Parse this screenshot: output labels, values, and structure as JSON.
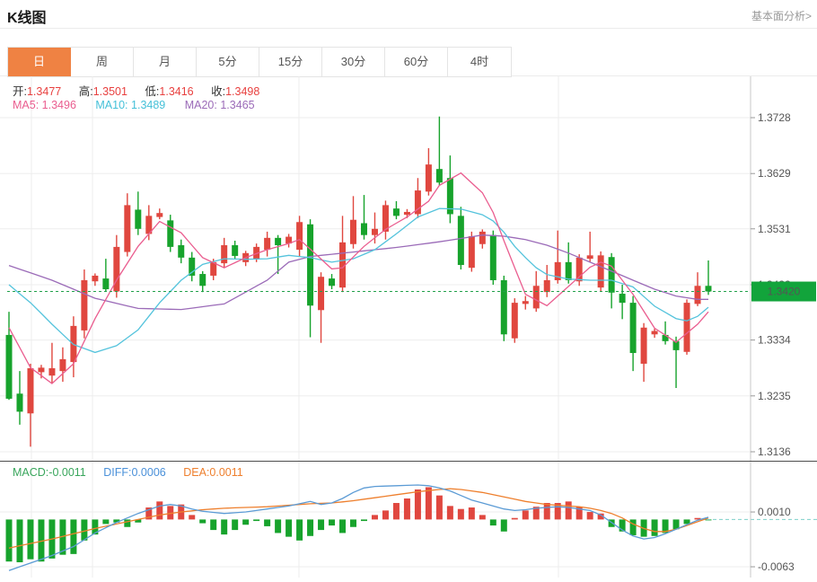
{
  "header": {
    "title": "K线图",
    "link": "基本面分析>"
  },
  "tabs": {
    "items": [
      "日",
      "周",
      "月",
      "5分",
      "15分",
      "30分",
      "60分",
      "4时"
    ],
    "selected": "日",
    "selected_index": 0
  },
  "overlay": {
    "ohlc": [
      {
        "label": "开:",
        "value": "1.3477"
      },
      {
        "label": "高:",
        "value": "1.3501"
      },
      {
        "label": "低:",
        "value": "1.3416"
      },
      {
        "label": "收:",
        "value": "1.3498"
      }
    ],
    "ma": [
      {
        "label": "MA5:",
        "value": "1.3496"
      },
      {
        "label": "MA10:",
        "value": "1.3489"
      },
      {
        "label": "MA20:",
        "value": "1.3465"
      }
    ],
    "macd": [
      {
        "label": "MACD:",
        "value": "-0.0011"
      },
      {
        "label": "DIFF:",
        "value": "0.0006"
      },
      {
        "label": "DEA:",
        "value": "0.0011"
      }
    ]
  },
  "colors": {
    "up": "#e0473f",
    "down": "#17a32c",
    "ma5": "#ea5d8f",
    "ma10": "#54c3dc",
    "ma20": "#9b6bb8",
    "diff": "#5b9bd5",
    "dea": "#ee7f2d",
    "badge": "#12a43b",
    "price_line": "#21a04a",
    "zero_dash": "#7fd0ca",
    "grid": "#ededed",
    "axis": "#c8c8c8",
    "tick": "#999999",
    "tick_text": "#555555",
    "accent_tab": "#ef8243"
  },
  "chart_data": {
    "type": "candlestick",
    "title": "K线图",
    "legend": [
      "MA5",
      "MA10",
      "MA20"
    ],
    "y_axis": {
      "max": 1.3728,
      "min": 1.3136,
      "tick_values": [
        1.3728,
        1.3629,
        1.3531,
        1.3432,
        1.3334,
        1.3235,
        1.3136
      ],
      "tick_labels": [
        "1.3728",
        "1.3629",
        "1.3531",
        "1.3432",
        "1.3334",
        "1.3235",
        "1.3136"
      ]
    },
    "current_price": 1.342,
    "current_price_label": "1.3420",
    "candles": [
      [
        1.3343,
        1.3384,
        1.3228,
        1.323
      ],
      [
        1.3239,
        1.3279,
        1.3184,
        1.3207
      ],
      [
        1.3204,
        1.3292,
        1.3145,
        1.3284
      ],
      [
        1.3277,
        1.329,
        1.3266,
        1.3285
      ],
      [
        1.3271,
        1.3329,
        1.3257,
        1.3284
      ],
      [
        1.3279,
        1.3321,
        1.326,
        1.33
      ],
      [
        1.3295,
        1.3376,
        1.3268,
        1.3359
      ],
      [
        1.3351,
        1.3459,
        1.3337,
        1.344
      ],
      [
        1.3438,
        1.3452,
        1.343,
        1.3448
      ],
      [
        1.3443,
        1.3478,
        1.342,
        1.3424
      ],
      [
        1.342,
        1.352,
        1.3409,
        1.3499
      ],
      [
        1.349,
        1.3594,
        1.3482,
        1.3573
      ],
      [
        1.3565,
        1.3597,
        1.352,
        1.3531
      ],
      [
        1.3522,
        1.3573,
        1.3511,
        1.3554
      ],
      [
        1.3552,
        1.3567,
        1.3548,
        1.3559
      ],
      [
        1.3546,
        1.3556,
        1.349,
        1.3499
      ],
      [
        1.3502,
        1.3512,
        1.347,
        1.348
      ],
      [
        1.348,
        1.349,
        1.3438,
        1.3448
      ],
      [
        1.3451,
        1.3456,
        1.3419,
        1.343
      ],
      [
        1.3448,
        1.3478,
        1.344,
        1.3472
      ],
      [
        1.347,
        1.3515,
        1.3462,
        1.3502
      ],
      [
        1.3502,
        1.351,
        1.3478,
        1.3483
      ],
      [
        1.3472,
        1.3492,
        1.3465,
        1.3488
      ],
      [
        1.3478,
        1.3505,
        1.3472,
        1.3499
      ],
      [
        1.3494,
        1.3526,
        1.3482,
        1.3515
      ],
      [
        1.3515,
        1.352,
        1.3451,
        1.3502
      ],
      [
        1.3505,
        1.3522,
        1.3498,
        1.3517
      ],
      [
        1.3494,
        1.3554,
        1.3482,
        1.3543
      ],
      [
        1.3539,
        1.3548,
        1.3339,
        1.3395
      ],
      [
        1.3387,
        1.3454,
        1.3329,
        1.3446
      ],
      [
        1.3443,
        1.3451,
        1.3424,
        1.343
      ],
      [
        1.3427,
        1.3554,
        1.3419,
        1.3507
      ],
      [
        1.3504,
        1.3589,
        1.3496,
        1.3547
      ],
      [
        1.3541,
        1.3591,
        1.3512,
        1.352
      ],
      [
        1.352,
        1.356,
        1.3505,
        1.3531
      ],
      [
        1.3526,
        1.3581,
        1.3512,
        1.3573
      ],
      [
        1.3567,
        1.358,
        1.3548,
        1.3554
      ],
      [
        1.3556,
        1.3566,
        1.355,
        1.3561
      ],
      [
        1.3557,
        1.3621,
        1.355,
        1.3599
      ],
      [
        1.3597,
        1.3674,
        1.359,
        1.3645
      ],
      [
        1.3637,
        1.373,
        1.3608,
        1.3613
      ],
      [
        1.3621,
        1.3661,
        1.3541,
        1.3557
      ],
      [
        1.3554,
        1.357,
        1.3459,
        1.3467
      ],
      [
        1.3462,
        1.3526,
        1.3455,
        1.3518
      ],
      [
        1.3504,
        1.353,
        1.3496,
        1.3526
      ],
      [
        1.352,
        1.3528,
        1.3432,
        1.344
      ],
      [
        1.344,
        1.3448,
        1.3332,
        1.3344
      ],
      [
        1.3337,
        1.3408,
        1.3329,
        1.34
      ],
      [
        1.3398,
        1.3412,
        1.3388,
        1.3403
      ],
      [
        1.339,
        1.3456,
        1.3384,
        1.343
      ],
      [
        1.3419,
        1.3467,
        1.341,
        1.344
      ],
      [
        1.344,
        1.3528,
        1.3434,
        1.3472
      ],
      [
        1.3472,
        1.3507,
        1.3434,
        1.344
      ],
      [
        1.3438,
        1.3486,
        1.343,
        1.348
      ],
      [
        1.3478,
        1.3526,
        1.3472,
        1.3484
      ],
      [
        1.3427,
        1.3491,
        1.342,
        1.3484
      ],
      [
        1.3481,
        1.3488,
        1.339,
        1.3418
      ],
      [
        1.3416,
        1.3432,
        1.3371,
        1.34
      ],
      [
        1.34,
        1.3412,
        1.3279,
        1.3311
      ],
      [
        1.3292,
        1.3364,
        1.326,
        1.3356
      ],
      [
        1.3344,
        1.3354,
        1.3338,
        1.335
      ],
      [
        1.3343,
        1.3367,
        1.3326,
        1.3332
      ],
      [
        1.3332,
        1.334,
        1.3249,
        1.3316
      ],
      [
        1.3313,
        1.3406,
        1.3308,
        1.34
      ],
      [
        1.3398,
        1.3454,
        1.3394,
        1.343
      ],
      [
        1.343,
        1.3475,
        1.3414,
        1.342
      ]
    ],
    "ma5_points": [
      [
        0,
        1.3356
      ],
      [
        2,
        1.3285
      ],
      [
        4,
        1.3257
      ],
      [
        6,
        1.3292
      ],
      [
        8,
        1.3372
      ],
      [
        10,
        1.344
      ],
      [
        12,
        1.35
      ],
      [
        14,
        1.3544
      ],
      [
        16,
        1.3524
      ],
      [
        18,
        1.348
      ],
      [
        20,
        1.3462
      ],
      [
        22,
        1.348
      ],
      [
        24,
        1.3494
      ],
      [
        26,
        1.3505
      ],
      [
        27,
        1.3512
      ],
      [
        28,
        1.3495
      ],
      [
        30,
        1.346
      ],
      [
        31,
        1.3462
      ],
      [
        33,
        1.35
      ],
      [
        35,
        1.353
      ],
      [
        37,
        1.3552
      ],
      [
        39,
        1.358
      ],
      [
        40,
        1.3608
      ],
      [
        42,
        1.363
      ],
      [
        44,
        1.3595
      ],
      [
        45,
        1.356
      ],
      [
        46,
        1.351
      ],
      [
        47,
        1.3462
      ],
      [
        48,
        1.3415
      ],
      [
        50,
        1.3395
      ],
      [
        52,
        1.3429
      ],
      [
        54,
        1.3463
      ],
      [
        55,
        1.3472
      ],
      [
        56,
        1.3465
      ],
      [
        58,
        1.3415
      ],
      [
        60,
        1.3355
      ],
      [
        62,
        1.333
      ],
      [
        64,
        1.3362
      ],
      [
        65,
        1.3384
      ]
    ],
    "ma10_points": [
      [
        0,
        1.3432
      ],
      [
        2,
        1.34
      ],
      [
        4,
        1.3362
      ],
      [
        6,
        1.3326
      ],
      [
        8,
        1.3312
      ],
      [
        10,
        1.3324
      ],
      [
        12,
        1.3352
      ],
      [
        14,
        1.34
      ],
      [
        16,
        1.344
      ],
      [
        18,
        1.3468
      ],
      [
        20,
        1.3478
      ],
      [
        22,
        1.3477
      ],
      [
        24,
        1.3478
      ],
      [
        26,
        1.3484
      ],
      [
        28,
        1.348
      ],
      [
        30,
        1.3472
      ],
      [
        32,
        1.3478
      ],
      [
        34,
        1.3494
      ],
      [
        36,
        1.3522
      ],
      [
        38,
        1.3552
      ],
      [
        40,
        1.3567
      ],
      [
        42,
        1.3566
      ],
      [
        44,
        1.3556
      ],
      [
        45,
        1.3545
      ],
      [
        46,
        1.3525
      ],
      [
        47,
        1.35
      ],
      [
        48,
        1.348
      ],
      [
        49,
        1.3462
      ],
      [
        50,
        1.345
      ],
      [
        52,
        1.3442
      ],
      [
        54,
        1.344
      ],
      [
        56,
        1.344
      ],
      [
        58,
        1.3428
      ],
      [
        60,
        1.3394
      ],
      [
        62,
        1.3372
      ],
      [
        63,
        1.3368
      ],
      [
        64,
        1.3376
      ],
      [
        65,
        1.3392
      ]
    ],
    "ma20_points": [
      [
        0,
        1.3466
      ],
      [
        4,
        1.344
      ],
      [
        8,
        1.3408
      ],
      [
        12,
        1.339
      ],
      [
        16,
        1.3388
      ],
      [
        20,
        1.3398
      ],
      [
        24,
        1.344
      ],
      [
        26,
        1.3472
      ],
      [
        28,
        1.3482
      ],
      [
        32,
        1.349
      ],
      [
        36,
        1.3498
      ],
      [
        40,
        1.3508
      ],
      [
        44,
        1.352
      ],
      [
        46,
        1.3518
      ],
      [
        48,
        1.3512
      ],
      [
        50,
        1.3502
      ],
      [
        52,
        1.3488
      ],
      [
        54,
        1.3472
      ],
      [
        56,
        1.3456
      ],
      [
        58,
        1.344
      ],
      [
        60,
        1.3424
      ],
      [
        62,
        1.3412
      ],
      [
        64,
        1.3406
      ],
      [
        65,
        1.3406
      ]
    ],
    "macd": {
      "y_axis": {
        "tick_values": [
          0.001,
          -0.0063
        ],
        "tick_labels": [
          "0.0010",
          "-0.0063"
        ]
      },
      "hist": [
        -0.0056,
        -0.0057,
        -0.0053,
        -0.0056,
        -0.0052,
        -0.0047,
        -0.0046,
        -0.0028,
        -0.002,
        -0.0006,
        -0.0004,
        -0.001,
        -0.0004,
        0.0016,
        0.0024,
        0.0018,
        0.002,
        0.0006,
        -0.0005,
        -0.0014,
        -0.002,
        -0.0014,
        -0.0007,
        -0.0002,
        -0.0009,
        -0.0018,
        -0.0023,
        -0.0028,
        -0.0022,
        -0.0014,
        -0.0008,
        -0.0018,
        -0.001,
        -0.0002,
        0.0006,
        0.0012,
        0.0022,
        0.0028,
        0.004,
        0.0043,
        0.0032,
        0.0018,
        0.0014,
        0.0016,
        0.0006,
        -0.0008,
        -0.0016,
        0.0002,
        0.0012,
        0.0017,
        0.0022,
        0.0022,
        0.0024,
        0.0017,
        0.001,
        0.0008,
        -0.001,
        -0.0016,
        -0.0021,
        -0.0023,
        -0.0022,
        -0.0018,
        -0.0013,
        -0.0006,
        0.0002,
        -0.0001
      ],
      "diff_points": [
        [
          0,
          -0.0068
        ],
        [
          2,
          -0.0058
        ],
        [
          4,
          -0.0048
        ],
        [
          6,
          -0.0036
        ],
        [
          8,
          -0.0018
        ],
        [
          10,
          -0.0004
        ],
        [
          12,
          0.0008
        ],
        [
          14,
          0.0018
        ],
        [
          15,
          0.002
        ],
        [
          16,
          0.0018
        ],
        [
          17,
          0.0014
        ],
        [
          18,
          0.0011
        ],
        [
          20,
          0.0008
        ],
        [
          22,
          0.001
        ],
        [
          24,
          0.0014
        ],
        [
          26,
          0.0018
        ],
        [
          28,
          0.0024
        ],
        [
          29,
          0.002
        ],
        [
          30,
          0.0022
        ],
        [
          31,
          0.0028
        ],
        [
          32,
          0.0036
        ],
        [
          33,
          0.0042
        ],
        [
          34,
          0.0044
        ],
        [
          36,
          0.0045
        ],
        [
          38,
          0.0046
        ],
        [
          39,
          0.0045
        ],
        [
          40,
          0.0042
        ],
        [
          41,
          0.0038
        ],
        [
          42,
          0.0032
        ],
        [
          43,
          0.0026
        ],
        [
          44,
          0.0022
        ],
        [
          45,
          0.0018
        ],
        [
          46,
          0.0014
        ],
        [
          47,
          0.0012
        ],
        [
          48,
          0.0013
        ],
        [
          49,
          0.0015
        ],
        [
          50,
          0.0016
        ],
        [
          51,
          0.0017
        ],
        [
          52,
          0.0016
        ],
        [
          53,
          0.0014
        ],
        [
          54,
          0.0012
        ],
        [
          55,
          0.0006
        ],
        [
          56,
          -0.0004
        ],
        [
          57,
          -0.0014
        ],
        [
          58,
          -0.0022
        ],
        [
          59,
          -0.0026
        ],
        [
          60,
          -0.0024
        ],
        [
          61,
          -0.0019
        ],
        [
          62,
          -0.0013
        ],
        [
          63,
          -0.0007
        ],
        [
          64,
          -0.0001
        ],
        [
          65,
          0.0003
        ]
      ],
      "dea_points": [
        [
          0,
          -0.0038
        ],
        [
          2,
          -0.0032
        ],
        [
          4,
          -0.0026
        ],
        [
          6,
          -0.0019
        ],
        [
          8,
          -0.0012
        ],
        [
          10,
          -0.0006
        ],
        [
          12,
          0.0
        ],
        [
          14,
          0.0006
        ],
        [
          16,
          0.001
        ],
        [
          18,
          0.0013
        ],
        [
          20,
          0.0015
        ],
        [
          22,
          0.0016
        ],
        [
          24,
          0.0017
        ],
        [
          26,
          0.0019
        ],
        [
          28,
          0.0021
        ],
        [
          30,
          0.0022
        ],
        [
          32,
          0.0025
        ],
        [
          34,
          0.0029
        ],
        [
          36,
          0.0033
        ],
        [
          38,
          0.0037
        ],
        [
          40,
          0.004
        ],
        [
          41,
          0.0041
        ],
        [
          42,
          0.004
        ],
        [
          43,
          0.0038
        ],
        [
          44,
          0.0036
        ],
        [
          45,
          0.0033
        ],
        [
          46,
          0.003
        ],
        [
          47,
          0.0027
        ],
        [
          48,
          0.0024
        ],
        [
          49,
          0.0022
        ],
        [
          50,
          0.002
        ],
        [
          51,
          0.0019
        ],
        [
          52,
          0.0018
        ],
        [
          53,
          0.0017
        ],
        [
          54,
          0.0015
        ],
        [
          55,
          0.0012
        ],
        [
          56,
          0.0008
        ],
        [
          57,
          0.0002
        ],
        [
          58,
          -0.0006
        ],
        [
          59,
          -0.0012
        ],
        [
          60,
          -0.0016
        ],
        [
          61,
          -0.0016
        ],
        [
          62,
          -0.0013
        ],
        [
          63,
          -0.0008
        ],
        [
          64,
          -0.0003
        ],
        [
          65,
          0.0002
        ]
      ]
    }
  }
}
